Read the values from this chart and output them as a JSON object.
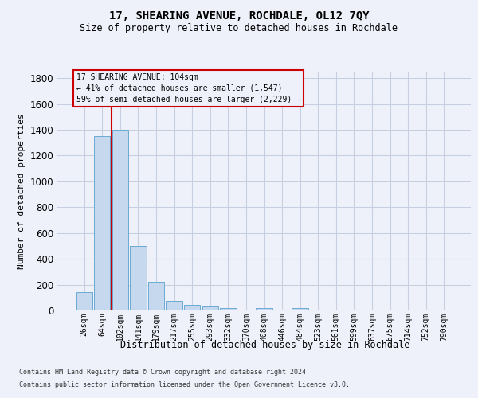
{
  "title": "17, SHEARING AVENUE, ROCHDALE, OL12 7QY",
  "subtitle": "Size of property relative to detached houses in Rochdale",
  "xlabel": "Distribution of detached houses by size in Rochdale",
  "ylabel": "Number of detached properties",
  "footer_line1": "Contains HM Land Registry data © Crown copyright and database right 2024.",
  "footer_line2": "Contains public sector information licensed under the Open Government Licence v3.0.",
  "categories": [
    "26sqm",
    "64sqm",
    "102sqm",
    "141sqm",
    "179sqm",
    "217sqm",
    "255sqm",
    "293sqm",
    "332sqm",
    "370sqm",
    "408sqm",
    "446sqm",
    "484sqm",
    "523sqm",
    "561sqm",
    "599sqm",
    "637sqm",
    "675sqm",
    "714sqm",
    "752sqm",
    "790sqm"
  ],
  "values": [
    140,
    1350,
    1400,
    500,
    225,
    75,
    45,
    30,
    20,
    5,
    20,
    5,
    20,
    0,
    0,
    0,
    0,
    0,
    0,
    0,
    0
  ],
  "bar_color": "#c5d8ee",
  "bar_edge_color": "#6aaad4",
  "highlight_index": 2,
  "highlight_line_color": "#cc0000",
  "ylim": [
    0,
    1850
  ],
  "yticks": [
    0,
    200,
    400,
    600,
    800,
    1000,
    1200,
    1400,
    1600,
    1800
  ],
  "annotation_line1": "17 SHEARING AVENUE: 104sqm",
  "annotation_line2": "← 41% of detached houses are smaller (1,547)",
  "annotation_line3": "59% of semi-detached houses are larger (2,229) →",
  "annotation_box_color": "#cc0000",
  "bg_color": "#eef1fa",
  "grid_color": "#c8cfe0"
}
